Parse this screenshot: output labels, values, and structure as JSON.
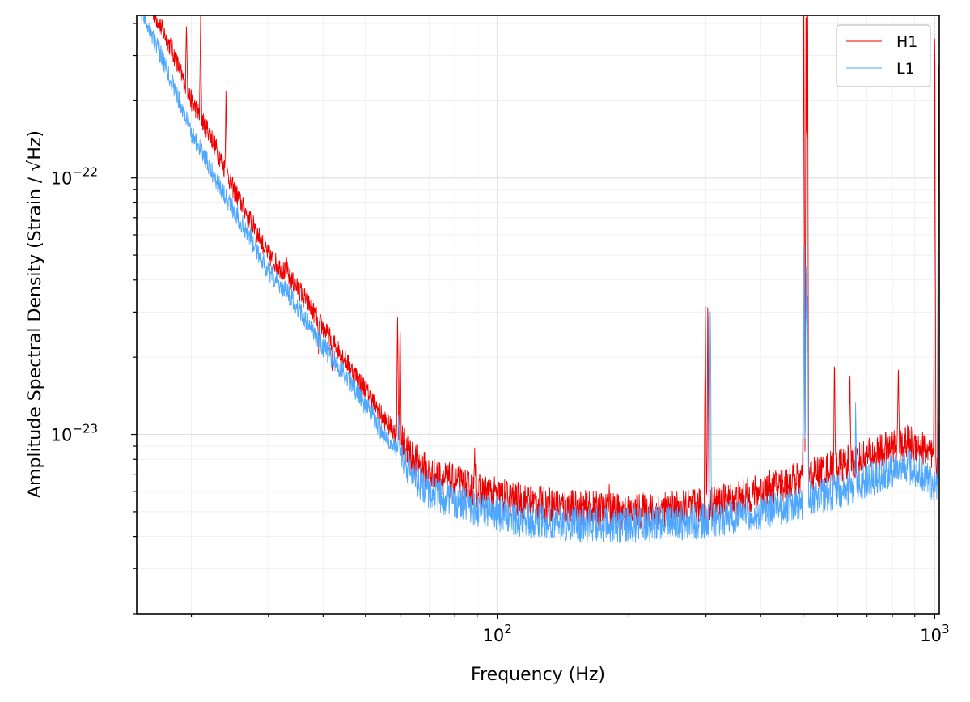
{
  "chart_data": {
    "type": "line",
    "title": "",
    "xlabel": "Frequency (Hz)",
    "ylabel": "Amplitude Spectral Density (Strain / √Hz)",
    "x_scale": "log",
    "y_scale": "log",
    "xlim": [
      15,
      1024
    ],
    "ylim": [
      2e-24,
      4.3e-22
    ],
    "grid": true,
    "legend_position": "top-right",
    "x_major_ticks": [
      {
        "value": 100,
        "base": "10",
        "exp": "2"
      },
      {
        "value": 1000,
        "base": "10",
        "exp": "3"
      }
    ],
    "y_major_ticks": [
      {
        "value": 1e-22,
        "base": "10",
        "exp": "−22"
      },
      {
        "value": 1e-23,
        "base": "10",
        "exp": "−23"
      }
    ],
    "series": [
      {
        "name": "H1",
        "color": "#ee0000",
        "baseline": [
          [
            15,
            6e-22
          ],
          [
            18,
            3.2e-22
          ],
          [
            20,
            2e-22
          ],
          [
            22,
            1.5e-22
          ],
          [
            25,
            9e-23
          ],
          [
            28,
            6.3e-23
          ],
          [
            30,
            5e-23
          ],
          [
            33,
            4.2e-23
          ],
          [
            36,
            3.5e-23
          ],
          [
            40,
            2.6e-23
          ],
          [
            45,
            1.95e-23
          ],
          [
            50,
            1.5e-23
          ],
          [
            55,
            1.15e-23
          ],
          [
            60,
            9.6e-24
          ],
          [
            65,
            8e-24
          ],
          [
            70,
            7e-24
          ],
          [
            80,
            6.5e-24
          ],
          [
            90,
            6e-24
          ],
          [
            100,
            5.8e-24
          ],
          [
            120,
            5.4e-24
          ],
          [
            150,
            5.2e-24
          ],
          [
            200,
            5e-24
          ],
          [
            250,
            5.1e-24
          ],
          [
            300,
            5.3e-24
          ],
          [
            350,
            5.6e-24
          ],
          [
            400,
            6e-24
          ],
          [
            450,
            6.4e-24
          ],
          [
            500,
            6.8e-24
          ],
          [
            600,
            7.5e-24
          ],
          [
            700,
            8.2e-24
          ],
          [
            800,
            8.9e-24
          ],
          [
            870,
            9.3e-24
          ],
          [
            950,
            8.8e-24
          ],
          [
            1000,
            7.8e-24
          ],
          [
            1024,
            7.5e-24
          ]
        ],
        "lines": [
          [
            19.5,
            4.2e-22
          ],
          [
            21,
            4.3e-22
          ],
          [
            24,
            2.3e-22
          ],
          [
            28,
            6.7e-23
          ],
          [
            33,
            4.8e-23
          ],
          [
            36,
            3.3e-23
          ],
          [
            39,
            2.1e-23
          ],
          [
            42,
            1.75e-23
          ],
          [
            59.2,
            3.1e-23
          ],
          [
            60,
            3e-23
          ],
          [
            89,
            8.5e-24
          ],
          [
            180,
            6.5e-24
          ],
          [
            299,
            3.6e-23
          ],
          [
            303,
            3.5e-23
          ],
          [
            502,
            8e-22
          ],
          [
            508,
            8e-22
          ],
          [
            512,
            8e-22
          ],
          [
            590,
            1.9e-23
          ],
          [
            640,
            1.6e-23
          ],
          [
            826,
            2e-23
          ],
          [
            1000,
            5e-22
          ],
          [
            1020,
            4e-22
          ]
        ]
      },
      {
        "name": "L1",
        "color": "#4da6ff",
        "baseline": [
          [
            15,
            5e-22
          ],
          [
            18,
            2.4e-22
          ],
          [
            20,
            1.5e-22
          ],
          [
            22,
            1.1e-22
          ],
          [
            25,
            7.5e-23
          ],
          [
            28,
            5.4e-23
          ],
          [
            30,
            4.3e-23
          ],
          [
            33,
            3.6e-23
          ],
          [
            36,
            2.9e-23
          ],
          [
            40,
            2.2e-23
          ],
          [
            45,
            1.7e-23
          ],
          [
            50,
            1.3e-23
          ],
          [
            55,
            1e-23
          ],
          [
            60,
            8.3e-24
          ],
          [
            65,
            6.8e-24
          ],
          [
            70,
            6e-24
          ],
          [
            80,
            5.5e-24
          ],
          [
            90,
            5.1e-24
          ],
          [
            100,
            4.9e-24
          ],
          [
            120,
            4.6e-24
          ],
          [
            150,
            4.5e-24
          ],
          [
            200,
            4.4e-24
          ],
          [
            250,
            4.5e-24
          ],
          [
            300,
            4.6e-24
          ],
          [
            350,
            4.8e-24
          ],
          [
            400,
            5e-24
          ],
          [
            450,
            5.2e-24
          ],
          [
            500,
            5.5e-24
          ],
          [
            600,
            6e-24
          ],
          [
            700,
            6.6e-24
          ],
          [
            800,
            7.2e-24
          ],
          [
            870,
            7.5e-24
          ],
          [
            950,
            6.9e-24
          ],
          [
            1000,
            6.3e-24
          ],
          [
            1024,
            6e-24
          ]
        ],
        "lines": [
          [
            59.5,
            1.2e-23
          ],
          [
            307,
            3.5e-23
          ],
          [
            503,
            6.3e-23
          ],
          [
            508,
            7e-23
          ],
          [
            512,
            4.2e-23
          ],
          [
            660,
            1.3e-23
          ],
          [
            1020,
            1.1e-23
          ]
        ]
      }
    ]
  }
}
